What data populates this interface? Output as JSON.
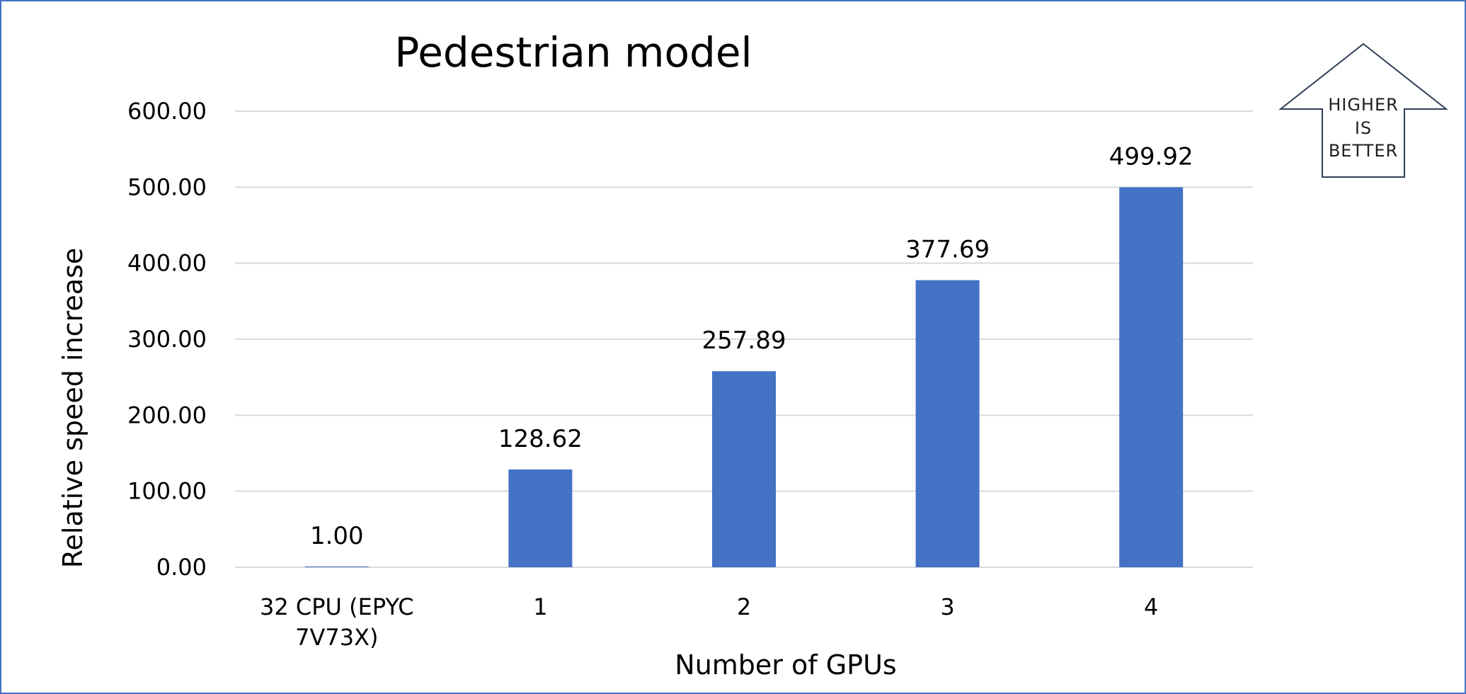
{
  "chart_data": {
    "type": "bar",
    "title": "Pedestrian model",
    "xlabel": "Number of GPUs",
    "ylabel": "Relative speed increase",
    "categories": [
      [
        "32 CPU (EPYC",
        "7V73X)"
      ],
      [
        "1"
      ],
      [
        "2"
      ],
      [
        "3"
      ],
      [
        "4"
      ]
    ],
    "values": [
      1.0,
      128.62,
      257.89,
      377.69,
      499.92
    ],
    "data_labels": [
      "1.00",
      "128.62",
      "257.89",
      "377.69",
      "499.92"
    ],
    "y_ticks": [
      "0.00",
      "100.00",
      "200.00",
      "300.00",
      "400.00",
      "500.00",
      "600.00"
    ],
    "ylim": [
      0,
      600
    ],
    "grid": true,
    "legend": "none",
    "bar_color": "#4472c4"
  },
  "badge": {
    "lines": [
      "HIGHER",
      "IS",
      "BETTER"
    ],
    "icon": "up-arrow-icon"
  },
  "colors": {
    "frame": "#4472c4",
    "gridline": "#d9d9d9",
    "badge_outline": "#2f3f57"
  }
}
